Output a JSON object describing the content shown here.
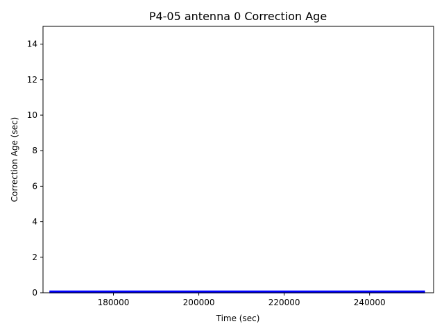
{
  "chart_data": {
    "type": "line",
    "title": "P4-05 antenna 0 Correction Age",
    "xlabel": "Time (sec)",
    "ylabel": "Correction Age (sec)",
    "xlim": [
      163500,
      255000
    ],
    "ylim": [
      0,
      15
    ],
    "xticks": [
      180000,
      200000,
      220000,
      240000
    ],
    "yticks": [
      0,
      2,
      4,
      6,
      8,
      10,
      12,
      14
    ],
    "grid": false,
    "series": [
      {
        "color": "#0000ff",
        "x": [
          165000,
          175000,
          185000,
          195000,
          205000,
          215000,
          225000,
          235000,
          245000,
          253000
        ],
        "y": [
          0.05,
          0.05,
          0.05,
          0.05,
          0.05,
          0.05,
          0.05,
          0.05,
          0.05,
          0.05
        ]
      }
    ]
  }
}
